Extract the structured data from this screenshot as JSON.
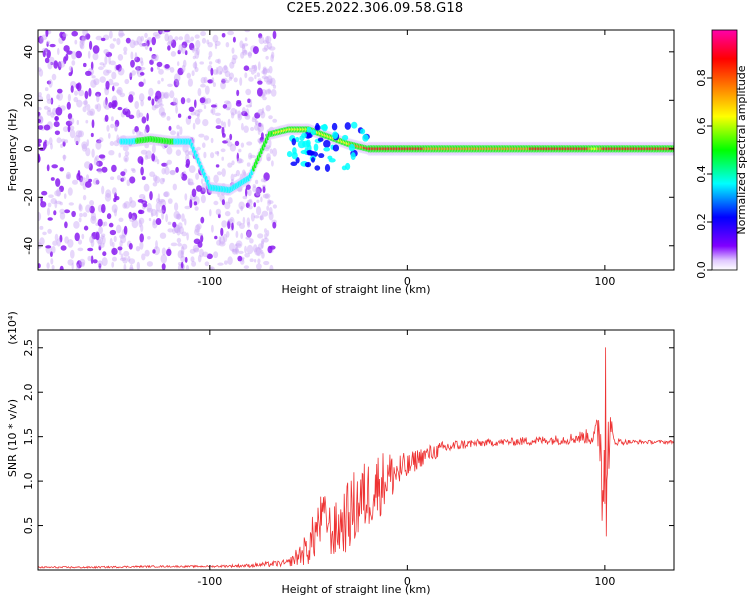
{
  "title": "C2E5.2022.306.09.58.G18",
  "chart_data": [
    {
      "type": "heatmap",
      "xlabel": "Height of straight line (km)",
      "ylabel": "Frequency (Hz)",
      "xlim": [
        -187,
        135
      ],
      "ylim": [
        -50,
        49
      ],
      "x_ticks": [
        -100,
        0,
        100
      ],
      "x_tick_labels": [
        "-100",
        "0",
        "100"
      ],
      "y_ticks": [
        -40,
        -20,
        0,
        20,
        40
      ],
      "y_tick_labels": [
        "-40",
        "-20",
        "0",
        "20",
        "40"
      ],
      "colorbar": {
        "label": "Normalized spectral amplitude",
        "range": [
          0,
          1
        ],
        "ticks": [
          0.0,
          0.2,
          0.4,
          0.6,
          0.8
        ],
        "tick_labels": [
          "0.0",
          "0.2",
          "0.4",
          "0.6",
          "0.8"
        ],
        "colormap": [
          "#ffffff",
          "#8000ff",
          "#0000ff",
          "#00ffff",
          "#00ff00",
          "#ffff00",
          "#ff8000",
          "#ff0000",
          "#ff00ff"
        ]
      },
      "ridge": {
        "x": [
          -140,
          -130,
          -120,
          -110,
          -100,
          -90,
          -80,
          -70,
          -60,
          -50,
          -40,
          -30,
          -20,
          -10,
          0,
          10,
          20,
          30,
          40,
          50,
          60,
          70,
          80,
          90,
          95,
          100,
          110,
          120,
          135
        ],
        "frequency": [
          3,
          4,
          3,
          3,
          -16,
          -17,
          -12,
          6,
          8,
          8,
          5,
          2,
          0,
          0,
          0,
          0,
          0,
          0,
          0,
          0,
          0,
          0,
          0,
          0,
          0,
          0,
          0,
          0,
          0
        ],
        "amplitude": [
          0.4,
          0.5,
          0.45,
          0.35,
          0.35,
          0.35,
          0.4,
          0.55,
          0.65,
          0.6,
          0.6,
          0.7,
          0.9,
          0.95,
          0.9,
          0.85,
          0.8,
          0.8,
          0.8,
          0.85,
          0.85,
          0.9,
          0.95,
          0.95,
          0.6,
          1.0,
          1.0,
          1.0,
          1.0
        ]
      }
    },
    {
      "type": "line",
      "xlabel": "Height of straight line (km)",
      "ylabel": "SNR (10 * v/v)",
      "y_multiplier_label": "(x10⁴)",
      "xlim": [
        -187,
        135
      ],
      "ylim": [
        0,
        2.7
      ],
      "x_ticks": [
        -100,
        0,
        100
      ],
      "x_tick_labels": [
        "-100",
        "0",
        "100"
      ],
      "y_ticks": [
        0.5,
        1.0,
        1.5,
        2.0,
        2.5
      ],
      "y_tick_labels": [
        "0.5",
        "1.0",
        "1.5",
        "2.0",
        "2.5"
      ],
      "color": "#ee3333",
      "x": [
        -187,
        -160,
        -130,
        -100,
        -80,
        -60,
        -50,
        -45,
        -42,
        -38,
        -30,
        -25,
        -20,
        -15,
        -10,
        -5,
        0,
        5,
        10,
        20,
        30,
        40,
        50,
        60,
        70,
        80,
        90,
        95,
        98,
        100,
        102,
        105,
        110,
        120,
        135
      ],
      "values": [
        0.03,
        0.03,
        0.04,
        0.04,
        0.05,
        0.08,
        0.25,
        0.5,
        0.65,
        0.4,
        0.6,
        0.75,
        0.85,
        0.95,
        1.05,
        1.1,
        1.15,
        1.25,
        1.3,
        1.38,
        1.42,
        1.43,
        1.44,
        1.45,
        1.46,
        1.47,
        1.5,
        1.5,
        1.6,
        0.5,
        1.5,
        1.45,
        1.44,
        1.44,
        1.44
      ],
      "noise": [
        0.01,
        0.01,
        0.01,
        0.01,
        0.02,
        0.04,
        0.2,
        0.35,
        0.2,
        0.3,
        0.4,
        0.45,
        0.4,
        0.4,
        0.3,
        0.25,
        0.15,
        0.12,
        0.1,
        0.08,
        0.05,
        0.04,
        0.04,
        0.05,
        0.05,
        0.06,
        0.08,
        0.12,
        0.5,
        0.6,
        0.4,
        0.05,
        0.03,
        0.02,
        0.02
      ]
    }
  ]
}
